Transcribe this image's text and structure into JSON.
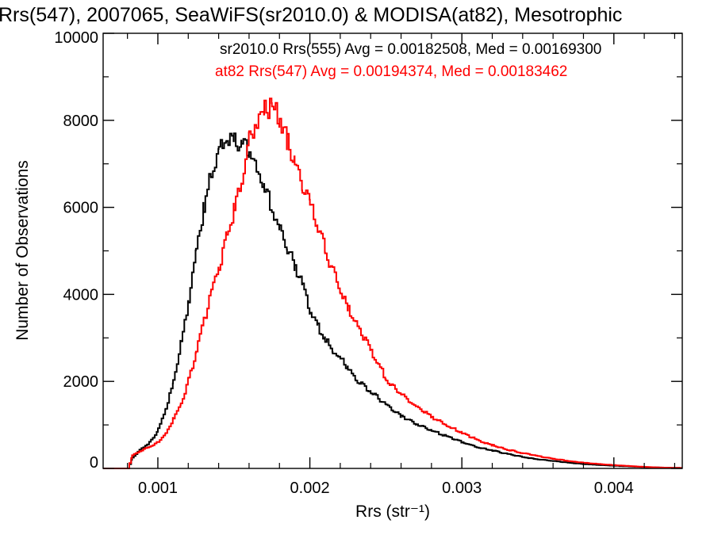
{
  "chart_data": {
    "type": "line",
    "title": "Rrs(547), 2007065, SeaWiFS(sr2010.0) & MODISA(at82), Mesotrophic",
    "xlabel": "Rrs (str⁻¹)",
    "ylabel": "Number of Observations",
    "xlim": [
      0.00064,
      0.00445
    ],
    "ylim": [
      0,
      10000
    ],
    "x_ticks": [
      0.001,
      0.002,
      0.003,
      0.004
    ],
    "x_tick_labels": [
      "0.001",
      "0.002",
      "0.003",
      "0.004"
    ],
    "y_ticks": [
      0,
      2000,
      4000,
      6000,
      8000,
      10000
    ],
    "y_tick_labels": [
      "0",
      "2000",
      "4000",
      "6000",
      "8000",
      "10000"
    ],
    "grid": false,
    "annotations": [
      {
        "text": "sr2010.0 Rrs(555) Avg = 0.00182508, Med = 0.00169300",
        "color": "#000000"
      },
      {
        "text": "at82 Rrs(547) Avg = 0.00194374, Med = 0.00183462",
        "color": "#ff0000"
      }
    ],
    "series": [
      {
        "color": "#000000",
        "style": "histogram-step",
        "x": [
          0.00064,
          0.0008,
          0.00083,
          0.00088,
          0.00093,
          0.00098,
          0.001,
          0.00105,
          0.0011,
          0.00115,
          0.0012,
          0.00125,
          0.0013,
          0.00135,
          0.0014,
          0.00145,
          0.0015,
          0.00155,
          0.0016,
          0.00165,
          0.0017,
          0.00175,
          0.0018,
          0.00185,
          0.0019,
          0.00195,
          0.002,
          0.00205,
          0.0021,
          0.00215,
          0.0022,
          0.00225,
          0.0023,
          0.0024,
          0.0025,
          0.0026,
          0.0027,
          0.0028,
          0.0029,
          0.003,
          0.0031,
          0.0032,
          0.0033,
          0.0034,
          0.0035,
          0.0036,
          0.0037,
          0.0038,
          0.0039,
          0.004,
          0.0041,
          0.0042,
          0.0043,
          0.00445
        ],
        "y": [
          0,
          0,
          250,
          430,
          560,
          750,
          900,
          1400,
          2000,
          2900,
          3900,
          5000,
          6000,
          6800,
          7300,
          7650,
          7600,
          7450,
          7300,
          6800,
          6400,
          6000,
          5450,
          5050,
          4650,
          4200,
          3600,
          3250,
          2950,
          2700,
          2500,
          2300,
          2050,
          1750,
          1450,
          1200,
          1020,
          870,
          730,
          600,
          490,
          410,
          330,
          260,
          210,
          170,
          130,
          100,
          80,
          60,
          45,
          30,
          20,
          10
        ]
      },
      {
        "color": "#ff0000",
        "style": "histogram-step",
        "x": [
          0.00064,
          0.0008,
          0.00083,
          0.00088,
          0.00093,
          0.00098,
          0.001,
          0.00105,
          0.0011,
          0.00115,
          0.0012,
          0.00125,
          0.0013,
          0.00135,
          0.0014,
          0.00145,
          0.0015,
          0.00155,
          0.0016,
          0.00165,
          0.0017,
          0.00175,
          0.0018,
          0.00185,
          0.0019,
          0.00195,
          0.002,
          0.00205,
          0.0021,
          0.00215,
          0.0022,
          0.00225,
          0.0023,
          0.0024,
          0.0025,
          0.0026,
          0.0027,
          0.0028,
          0.0029,
          0.003,
          0.0031,
          0.0032,
          0.0033,
          0.0034,
          0.0035,
          0.0036,
          0.0037,
          0.0038,
          0.0039,
          0.004,
          0.0041,
          0.0042,
          0.0043,
          0.00445
        ],
        "y": [
          0,
          0,
          300,
          400,
          480,
          560,
          620,
          800,
          1150,
          1500,
          2050,
          2700,
          3400,
          4050,
          4650,
          5300,
          5950,
          6700,
          7550,
          8050,
          8250,
          8300,
          8050,
          7500,
          6950,
          6500,
          6050,
          5500,
          5000,
          4500,
          4050,
          3650,
          3300,
          2700,
          2050,
          1700,
          1400,
          1180,
          990,
          810,
          650,
          530,
          430,
          350,
          280,
          220,
          170,
          130,
          100,
          75,
          55,
          35,
          20,
          10
        ]
      }
    ]
  }
}
